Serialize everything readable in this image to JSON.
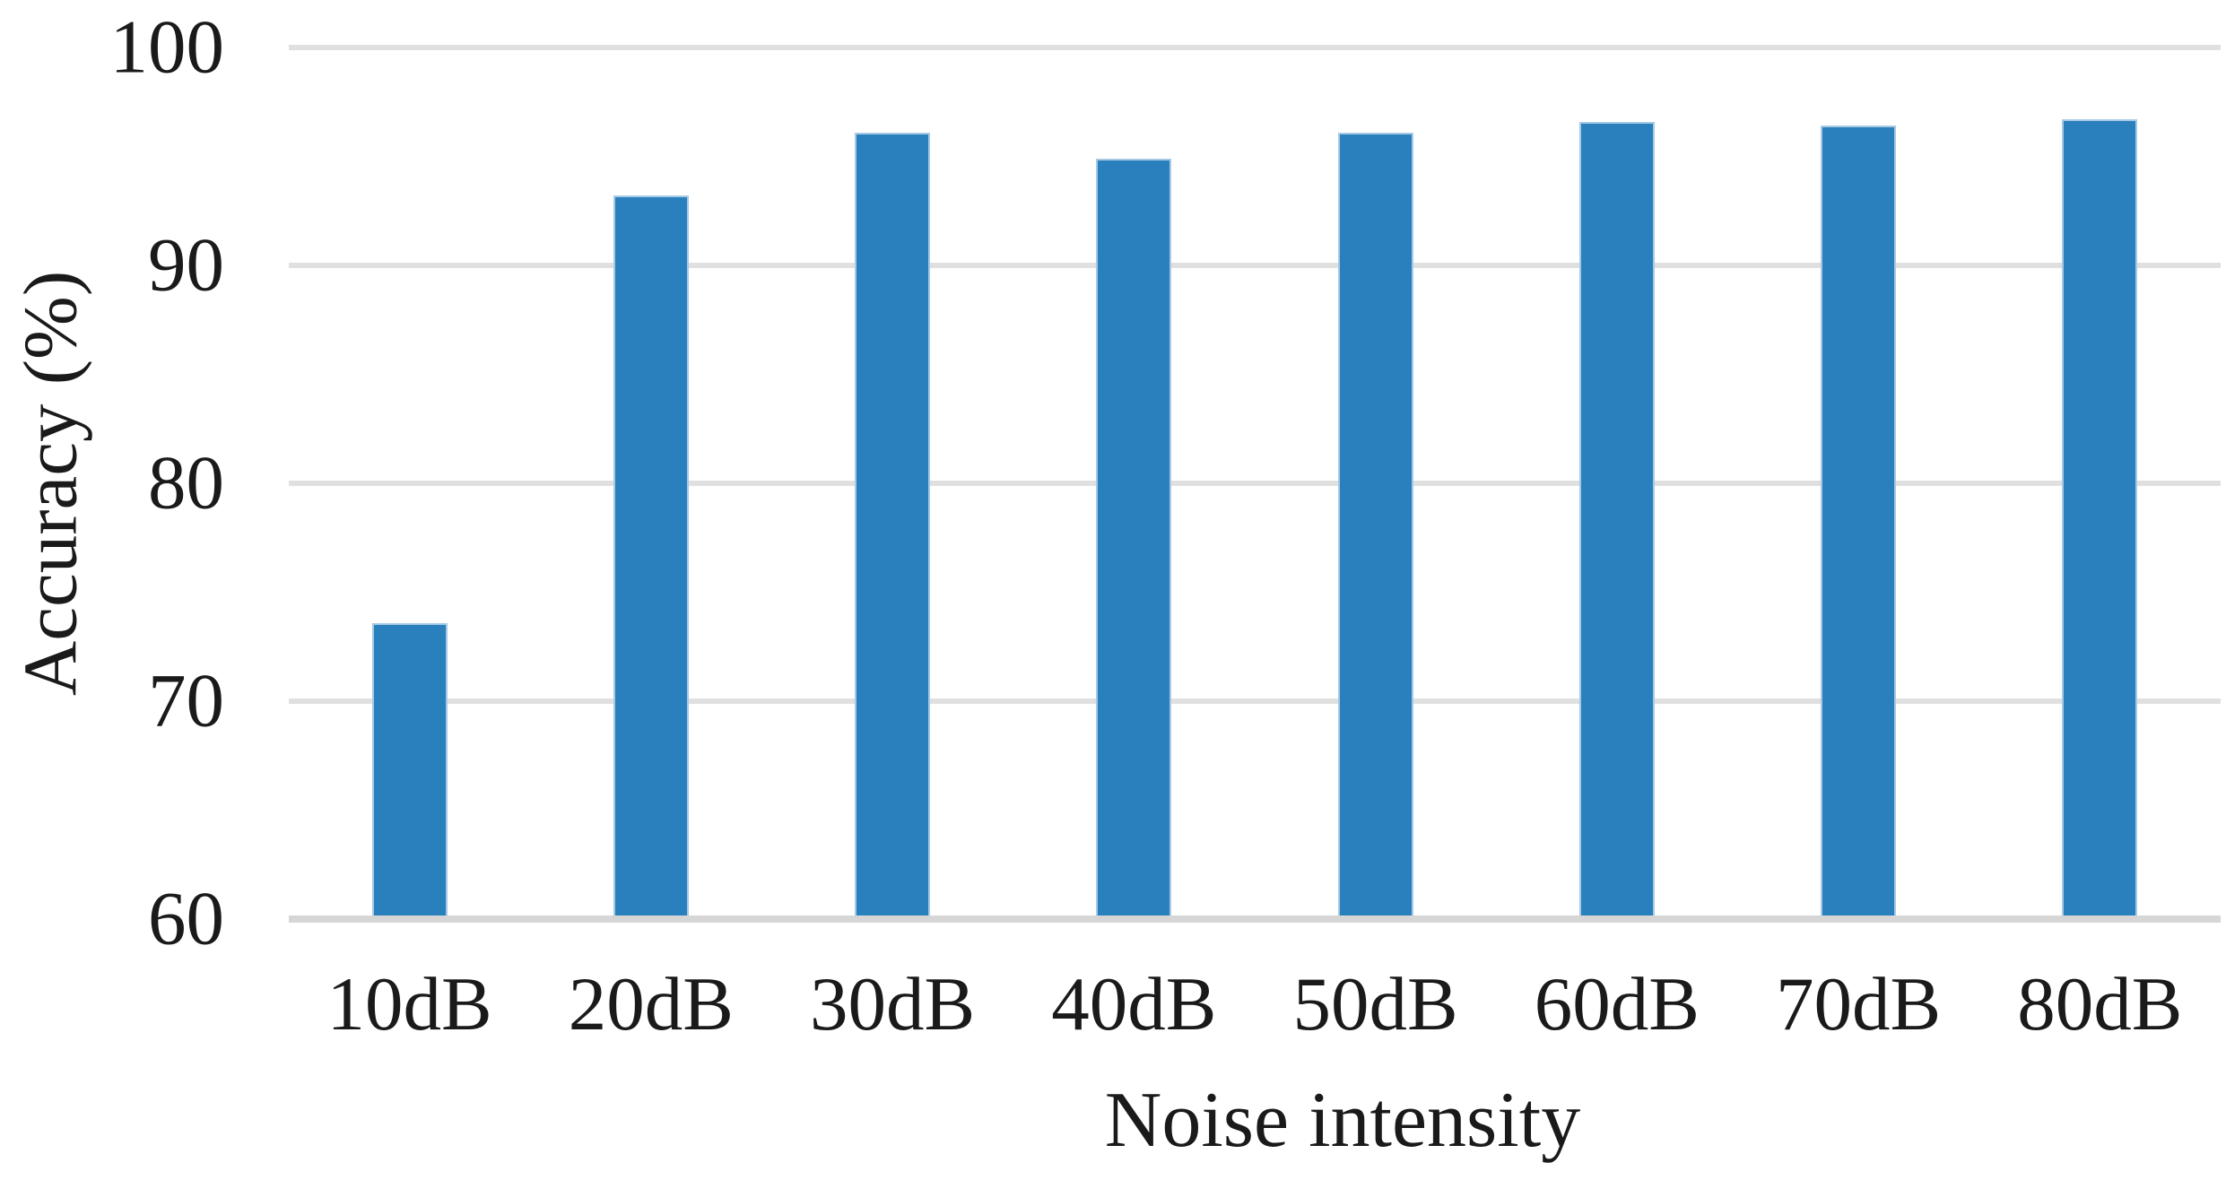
{
  "chart_data": {
    "type": "bar",
    "title": "",
    "categories": [
      "10dB",
      "20dB",
      "30dB",
      "40dB",
      "50dB",
      "60dB",
      "70dB",
      "80dB"
    ],
    "values": [
      73.6,
      93.2,
      96.1,
      94.9,
      96.1,
      96.6,
      96.4,
      96.7
    ],
    "series_name": "Accuracy",
    "xlabel": "Noise intensity",
    "ylabel": "Accuracy (%)",
    "ylim": [
      60,
      100
    ],
    "yticks": [
      100,
      90,
      80,
      70,
      60
    ],
    "grid": true,
    "legend": "none",
    "bar_color": "#2980bc",
    "bar_border_color": "#a6c9e5",
    "gridline_color": "#e0e0e0",
    "axis_line_color": "#d6d6d6",
    "text_color": "#1a1a1a",
    "background_color": "#ffffff"
  }
}
